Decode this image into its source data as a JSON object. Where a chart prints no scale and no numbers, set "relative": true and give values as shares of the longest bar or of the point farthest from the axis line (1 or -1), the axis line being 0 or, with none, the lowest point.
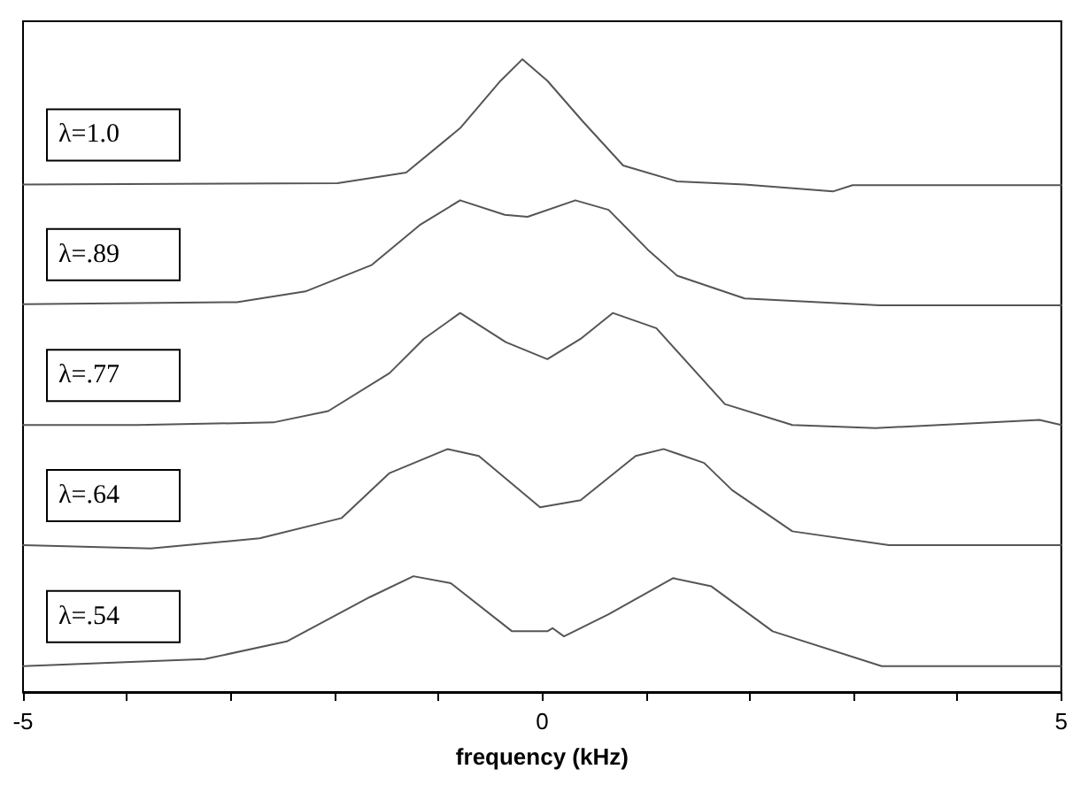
{
  "chart_data": {
    "type": "line",
    "relative": true,
    "xlabel": "frequency (kHz)",
    "xlim": [
      -5,
      5
    ],
    "xticks": [
      -5,
      {
        "value": -4,
        "label": null
      },
      {
        "value": -3,
        "label": null
      },
      {
        "value": -2,
        "label": null
      },
      {
        "value": -1,
        "label": null
      },
      0,
      {
        "value": 1,
        "label": null
      },
      {
        "value": 2,
        "label": null
      },
      {
        "value": 3,
        "label": null
      },
      {
        "value": 4,
        "label": null
      },
      5
    ],
    "marker": "none",
    "line_style": "solid",
    "grid": false,
    "series": [
      {
        "name": "λ=1.0",
        "color": "#555555",
        "x": [
          -5,
          -1.97,
          -1.31,
          -0.79,
          -0.4,
          -0.19,
          0.05,
          0.39,
          0.78,
          1.3,
          1.95,
          2.8,
          2.99,
          5
        ],
        "values": [
          0.802,
          0.804,
          0.821,
          0.891,
          0.966,
          1.0,
          0.966,
          0.902,
          0.832,
          0.807,
          0.802,
          0.791,
          0.801,
          0.801
        ]
      },
      {
        "name": "λ=.89",
        "color": "#555555",
        "x": [
          -5,
          -2.94,
          -2.28,
          -1.64,
          -1.17,
          -0.79,
          -0.36,
          -0.14,
          0.32,
          0.64,
          1.03,
          1.3,
          1.95,
          3.25,
          5
        ],
        "values": [
          0.613,
          0.616,
          0.633,
          0.675,
          0.739,
          0.777,
          0.754,
          0.751,
          0.777,
          0.762,
          0.697,
          0.658,
          0.622,
          0.611,
          0.611
        ]
      },
      {
        "name": "λ=.77",
        "color": "#555555",
        "x": [
          -5,
          -3.9,
          -2.59,
          -2.06,
          -1.47,
          -1.14,
          -0.79,
          -0.35,
          0.05,
          0.37,
          0.68,
          1.1,
          1.76,
          2.41,
          3.21,
          4.79,
          5
        ],
        "values": [
          0.422,
          0.422,
          0.426,
          0.444,
          0.504,
          0.558,
          0.599,
          0.553,
          0.526,
          0.558,
          0.599,
          0.575,
          0.455,
          0.422,
          0.417,
          0.43,
          0.422
        ]
      },
      {
        "name": "λ=.64",
        "color": "#555555",
        "x": [
          -5,
          -3.77,
          -2.72,
          -1.93,
          -1.47,
          -0.91,
          -0.61,
          -0.02,
          0.37,
          0.9,
          1.17,
          1.56,
          1.83,
          2.41,
          3.34,
          5
        ],
        "values": [
          0.232,
          0.227,
          0.243,
          0.275,
          0.346,
          0.384,
          0.373,
          0.292,
          0.303,
          0.373,
          0.384,
          0.362,
          0.319,
          0.254,
          0.232,
          0.232
        ]
      },
      {
        "name": "λ=.54",
        "color": "#555555",
        "x": [
          -5,
          -3.25,
          -2.46,
          -1.66,
          -1.24,
          -0.88,
          -0.29,
          0.05,
          0.1,
          0.21,
          0.64,
          1.26,
          1.63,
          2.22,
          3.27,
          5
        ],
        "values": [
          0.041,
          0.052,
          0.08,
          0.15,
          0.183,
          0.172,
          0.096,
          0.096,
          0.101,
          0.088,
          0.123,
          0.18,
          0.167,
          0.096,
          0.041,
          0.041
        ]
      }
    ]
  }
}
